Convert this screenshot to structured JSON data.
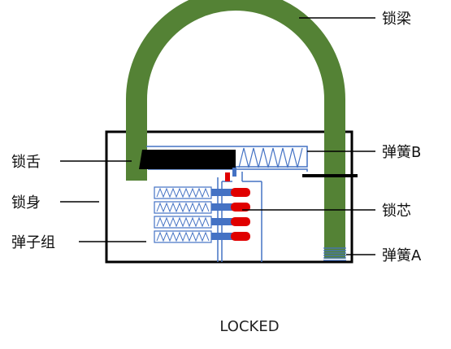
{
  "labels": {
    "shackle": "锁梁",
    "bolt": "锁舌",
    "body": "锁身",
    "pin_group": "弹子组",
    "spring_b": "弹簧B",
    "core": "锁芯",
    "spring_a": "弹簧A"
  },
  "status": "LOCKED",
  "colors": {
    "shackle": "#548235",
    "outline": "#000000",
    "bolt": "#000000",
    "spring": "#4472c4",
    "driver_pin": "#4472c4",
    "key_pin": "#e00000",
    "core_line": "#5b7fc4"
  }
}
